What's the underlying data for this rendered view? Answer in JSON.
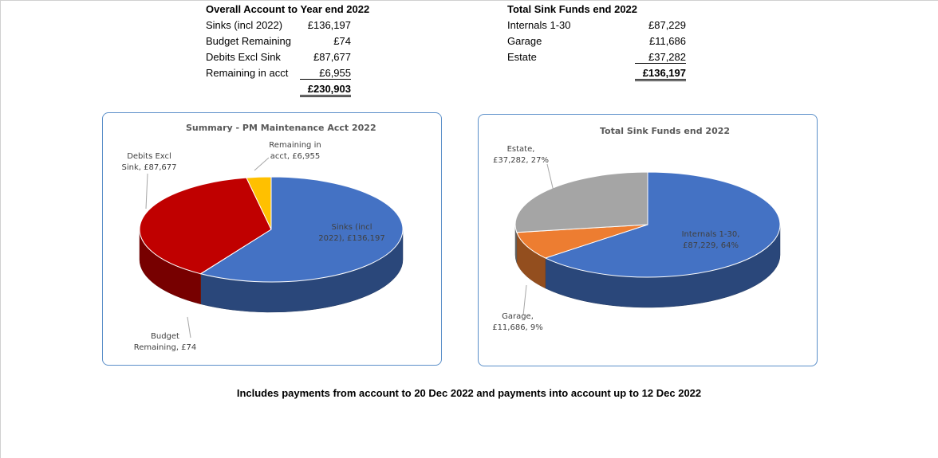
{
  "overall": {
    "title": "Overall Account to Year end 2022",
    "rows": [
      {
        "label": "Sinks (incl 2022)",
        "value": "£136,197"
      },
      {
        "label": "Budget Remaining",
        "value": "£74"
      },
      {
        "label": "Debits Excl Sink",
        "value": "£87,677"
      },
      {
        "label": "Remaining in acct",
        "value": "£6,955"
      }
    ],
    "total": "£230,903"
  },
  "sink_funds": {
    "title": "Total Sink Funds end 2022",
    "rows": [
      {
        "label": "Internals 1-30",
        "value": "£87,229"
      },
      {
        "label": "Garage",
        "value": "£11,686"
      },
      {
        "label": "Estate",
        "value": "£37,282"
      }
    ],
    "total": "£136,197"
  },
  "chart_data": [
    {
      "type": "pie",
      "title": "Summary - PM Maintenance Acct 2022",
      "categories": [
        "Sinks (incl 2022)",
        "Budget Remaining",
        "Debits Excl Sink",
        "Remaining in acct"
      ],
      "values": [
        136197,
        74,
        87677,
        6955
      ],
      "colors": [
        "#4472c4",
        "#ed7d31",
        "#c00000",
        "#ffc000"
      ],
      "labels": {
        "sinks": "Sinks (incl 2022), £136,197",
        "budget": "Budget Remaining, £74",
        "debits": "Debits Excl Sink, £87,677",
        "remaining": "Remaining in acct, £6,955"
      }
    },
    {
      "type": "pie",
      "title": "Total Sink Funds end 2022",
      "categories": [
        "Internals 1-30",
        "Garage",
        "Estate"
      ],
      "values": [
        87229,
        11686,
        37282
      ],
      "percent": [
        64,
        9,
        27
      ],
      "colors": [
        "#4472c4",
        "#ed7d31",
        "#a5a5a5"
      ],
      "labels": {
        "internals": "Internals 1-30, £87,229, 64%",
        "garage": "Garage, £11,686, 9%",
        "estate": "Estate, £37,282, 27%"
      }
    }
  ],
  "footer": "Includes payments from account to 20 Dec 2022 and payments into account up to 12 Dec 2022"
}
